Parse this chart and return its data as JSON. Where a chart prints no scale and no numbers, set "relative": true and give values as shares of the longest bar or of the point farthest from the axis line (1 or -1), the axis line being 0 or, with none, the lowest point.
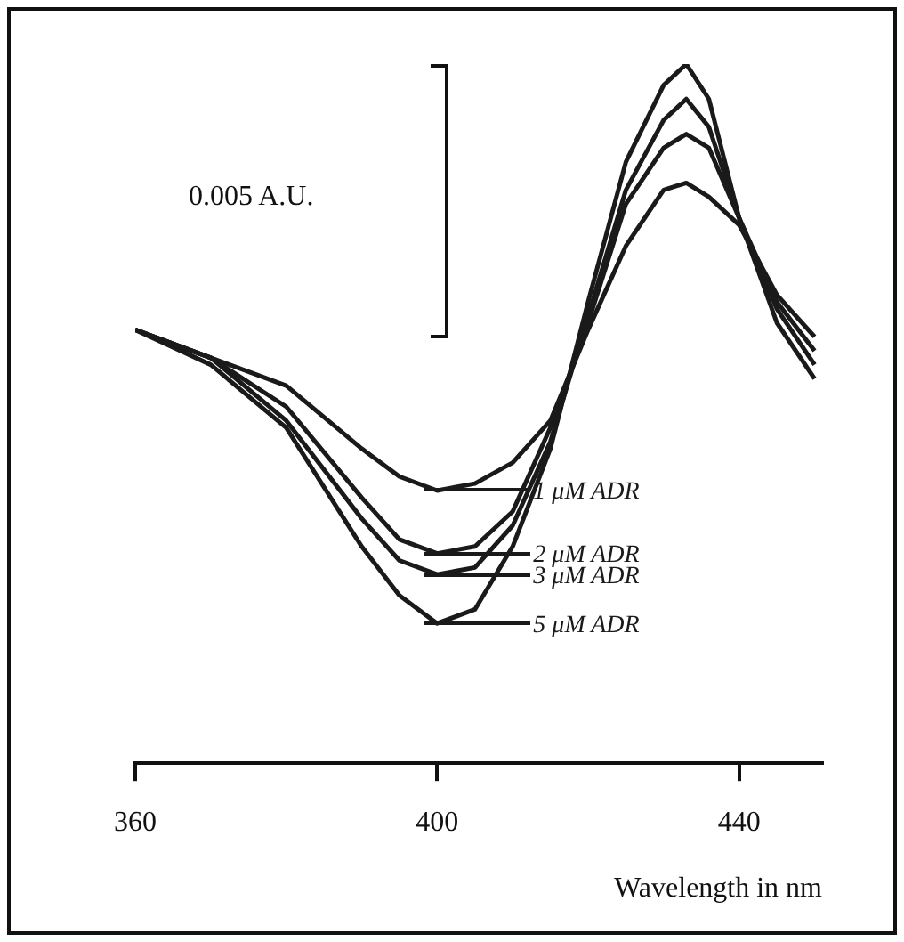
{
  "chart_data": {
    "type": "line",
    "relative": true,
    "xlabel": "Wavelength in nm",
    "xlim": [
      360,
      451
    ],
    "xticks": [
      360,
      400,
      440
    ],
    "grid": false,
    "legend": "bottom",
    "marker": "none",
    "line_style": "solid",
    "x": [
      360,
      370,
      380,
      390,
      395,
      400,
      405,
      410,
      415,
      420,
      425,
      430,
      433,
      436,
      440,
      445,
      450
    ],
    "series": [
      {
        "name": "1 μM ADR",
        "color": "#1a1a1a",
        "values": [
          0.62,
          0.58,
          0.54,
          0.45,
          0.41,
          0.39,
          0.4,
          0.43,
          0.49,
          0.62,
          0.74,
          0.82,
          0.83,
          0.81,
          0.77,
          0.67,
          0.61
        ]
      },
      {
        "name": "2 μM ADR",
        "color": "#1a1a1a",
        "values": [
          0.62,
          0.58,
          0.51,
          0.38,
          0.32,
          0.3,
          0.31,
          0.36,
          0.48,
          0.63,
          0.8,
          0.88,
          0.9,
          0.88,
          0.78,
          0.66,
          0.59
        ]
      },
      {
        "name": "3 μM ADR",
        "color": "#1a1a1a",
        "values": [
          0.62,
          0.58,
          0.49,
          0.35,
          0.29,
          0.27,
          0.28,
          0.34,
          0.46,
          0.64,
          0.82,
          0.92,
          0.95,
          0.91,
          0.78,
          0.65,
          0.57
        ]
      },
      {
        "name": "5 μM ADR",
        "color": "#1a1a1a",
        "values": [
          0.62,
          0.57,
          0.48,
          0.31,
          0.24,
          0.2,
          0.22,
          0.31,
          0.45,
          0.66,
          0.86,
          0.97,
          1,
          0.95,
          0.78,
          0.63,
          0.55
        ]
      }
    ],
    "annotations": [
      "0.005 A.U."
    ]
  }
}
